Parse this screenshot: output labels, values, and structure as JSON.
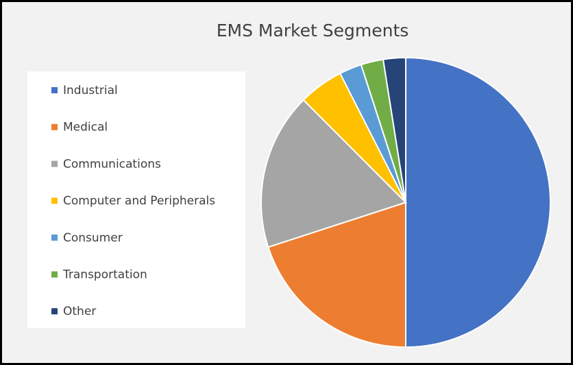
{
  "chart_data": {
    "type": "pie",
    "title": "EMS Market Segments",
    "categories": [
      "Industrial",
      "Medical",
      "Communications",
      "Computer and Peripherals",
      "Consumer",
      "Transportation",
      "Other"
    ],
    "values": [
      50,
      20,
      17.5,
      5,
      2.5,
      2.5,
      2.5
    ],
    "colors": [
      "#4472c4",
      "#ed7d31",
      "#a5a5a5",
      "#ffc000",
      "#5b9bd5",
      "#70ad47",
      "#264478"
    ],
    "legend": "left"
  }
}
